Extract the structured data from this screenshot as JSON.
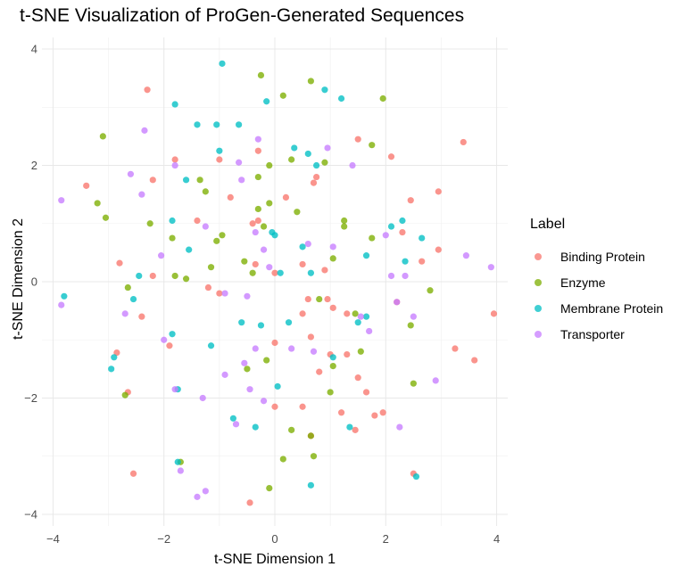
{
  "chart_data": {
    "type": "scatter",
    "title": "t-SNE Visualization of ProGen-Generated Sequences",
    "xlabel": "t-SNE Dimension 1",
    "ylabel": "t-SNE Dimension 2",
    "xlim": [
      -4.2,
      4.2
    ],
    "ylim": [
      -4.2,
      4.2
    ],
    "xticks": [
      -4,
      -2,
      0,
      2,
      4
    ],
    "yticks": [
      -4,
      -2,
      0,
      2,
      4
    ],
    "grid": true,
    "legend": {
      "title": "Label",
      "position": "right"
    },
    "series": [
      {
        "name": "Binding Protein",
        "color": "#F8766D",
        "points": [
          [
            -2.3,
            3.3
          ],
          [
            -2.2,
            1.75
          ],
          [
            -3.4,
            1.65
          ],
          [
            -2.8,
            0.32
          ],
          [
            -2.2,
            0.1
          ],
          [
            -2.4,
            -0.6
          ],
          [
            -1.9,
            -1.1
          ],
          [
            -2.85,
            -1.22
          ],
          [
            -2.65,
            -1.9
          ],
          [
            -2.55,
            -3.3
          ],
          [
            -1.8,
            2.1
          ],
          [
            -1.4,
            1.05
          ],
          [
            -1.2,
            -0.1
          ],
          [
            -1.0,
            -0.2
          ],
          [
            -1.0,
            2.1
          ],
          [
            -0.8,
            1.45
          ],
          [
            -0.3,
            2.25
          ],
          [
            -0.4,
            1.0
          ],
          [
            -0.3,
            1.05
          ],
          [
            0.2,
            1.45
          ],
          [
            0.0,
            0.15
          ],
          [
            -0.35,
            0.3
          ],
          [
            0.5,
            0.3
          ],
          [
            0.5,
            -0.55
          ],
          [
            0.6,
            -0.3
          ],
          [
            0.75,
            1.8
          ],
          [
            0.7,
            1.7
          ],
          [
            0.9,
            0.2
          ],
          [
            0.95,
            -0.3
          ],
          [
            1.05,
            -0.45
          ],
          [
            1.3,
            -0.55
          ],
          [
            0.65,
            -0.95
          ],
          [
            1.0,
            -1.25
          ],
          [
            0.8,
            -1.55
          ],
          [
            0.0,
            -1.05
          ],
          [
            1.3,
            -1.25
          ],
          [
            1.5,
            -1.65
          ],
          [
            1.65,
            -1.9
          ],
          [
            1.2,
            -2.25
          ],
          [
            1.45,
            -2.55
          ],
          [
            1.8,
            -2.3
          ],
          [
            1.95,
            -2.25
          ],
          [
            0.65,
            -2.65
          ],
          [
            0.5,
            -2.15
          ],
          [
            0.0,
            -2.15
          ],
          [
            -0.45,
            -3.8
          ],
          [
            1.5,
            2.45
          ],
          [
            2.1,
            2.15
          ],
          [
            2.3,
            0.85
          ],
          [
            2.2,
            -0.35
          ],
          [
            2.45,
            1.4
          ],
          [
            2.65,
            0.35
          ],
          [
            2.95,
            0.55
          ],
          [
            2.95,
            1.55
          ],
          [
            3.4,
            2.4
          ],
          [
            3.25,
            -1.15
          ],
          [
            3.6,
            -1.35
          ],
          [
            3.95,
            -0.55
          ],
          [
            2.5,
            -3.3
          ]
        ]
      },
      {
        "name": "Enzyme",
        "color": "#7CAE00",
        "points": [
          [
            -3.1,
            2.5
          ],
          [
            -3.2,
            1.35
          ],
          [
            -3.05,
            1.1
          ],
          [
            -2.25,
            1.0
          ],
          [
            -1.85,
            0.75
          ],
          [
            -1.8,
            0.1
          ],
          [
            -1.6,
            0.05
          ],
          [
            -1.15,
            0.25
          ],
          [
            -1.35,
            1.75
          ],
          [
            -1.25,
            1.55
          ],
          [
            -1.05,
            0.7
          ],
          [
            -0.95,
            0.8
          ],
          [
            -0.55,
            0.35
          ],
          [
            -0.4,
            0.15
          ],
          [
            -0.3,
            1.8
          ],
          [
            -0.3,
            1.25
          ],
          [
            -0.1,
            1.35
          ],
          [
            -0.2,
            0.95
          ],
          [
            -0.1,
            2.0
          ],
          [
            -0.25,
            3.55
          ],
          [
            0.15,
            3.2
          ],
          [
            0.3,
            2.1
          ],
          [
            0.4,
            1.2
          ],
          [
            0.65,
            3.45
          ],
          [
            0.9,
            2.05
          ],
          [
            1.25,
            1.05
          ],
          [
            1.25,
            0.95
          ],
          [
            1.05,
            0.4
          ],
          [
            1.75,
            2.35
          ],
          [
            1.95,
            3.15
          ],
          [
            1.75,
            0.75
          ],
          [
            1.45,
            -0.55
          ],
          [
            0.8,
            -0.3
          ],
          [
            2.8,
            -0.15
          ],
          [
            2.45,
            -0.75
          ],
          [
            2.5,
            -1.75
          ],
          [
            1.55,
            -1.2
          ],
          [
            1.05,
            -1.45
          ],
          [
            1.0,
            -1.9
          ],
          [
            -0.15,
            -1.35
          ],
          [
            -0.5,
            -1.5
          ],
          [
            0.3,
            -2.55
          ],
          [
            0.65,
            -2.65
          ],
          [
            0.7,
            -3.0
          ],
          [
            0.15,
            -3.05
          ],
          [
            -0.1,
            -3.55
          ],
          [
            -1.7,
            -3.1
          ],
          [
            -2.7,
            -1.95
          ],
          [
            -2.65,
            -0.1
          ]
        ]
      },
      {
        "name": "Membrane Protein",
        "color": "#00BFC4",
        "points": [
          [
            -0.95,
            3.75
          ],
          [
            -1.8,
            3.05
          ],
          [
            -1.4,
            2.7
          ],
          [
            -1.05,
            2.7
          ],
          [
            -0.65,
            2.7
          ],
          [
            -1.0,
            2.25
          ],
          [
            -0.15,
            3.1
          ],
          [
            0.9,
            3.3
          ],
          [
            1.2,
            3.15
          ],
          [
            0.35,
            2.3
          ],
          [
            0.6,
            2.2
          ],
          [
            0.75,
            2.0
          ],
          [
            -1.6,
            1.75
          ],
          [
            -1.85,
            1.05
          ],
          [
            -1.55,
            0.55
          ],
          [
            -0.05,
            0.85
          ],
          [
            0.0,
            0.8
          ],
          [
            0.5,
            0.6
          ],
          [
            0.1,
            0.15
          ],
          [
            0.65,
            0.15
          ],
          [
            1.65,
            0.45
          ],
          [
            2.1,
            0.95
          ],
          [
            2.3,
            1.05
          ],
          [
            2.35,
            0.35
          ],
          [
            2.65,
            0.75
          ],
          [
            -3.8,
            -0.25
          ],
          [
            -2.45,
            0.1
          ],
          [
            -2.55,
            -0.3
          ],
          [
            -2.9,
            -1.3
          ],
          [
            -2.95,
            -1.5
          ],
          [
            -1.85,
            -0.9
          ],
          [
            -1.75,
            -1.85
          ],
          [
            -1.15,
            -1.1
          ],
          [
            -0.6,
            -0.7
          ],
          [
            -0.25,
            -0.75
          ],
          [
            0.25,
            -0.7
          ],
          [
            0.05,
            -1.8
          ],
          [
            1.05,
            -1.3
          ],
          [
            1.5,
            -0.7
          ],
          [
            1.65,
            -0.6
          ],
          [
            1.35,
            -2.5
          ],
          [
            -0.75,
            -2.35
          ],
          [
            -0.35,
            -2.5
          ],
          [
            -1.75,
            -3.1
          ],
          [
            0.65,
            -3.5
          ],
          [
            2.55,
            -3.35
          ]
        ]
      },
      {
        "name": "Transporter",
        "color": "#C77CFF",
        "points": [
          [
            -3.85,
            1.4
          ],
          [
            -2.6,
            1.85
          ],
          [
            -2.4,
            1.5
          ],
          [
            -2.35,
            2.6
          ],
          [
            -1.8,
            2.0
          ],
          [
            -1.25,
            0.95
          ],
          [
            -0.65,
            2.05
          ],
          [
            -0.3,
            2.45
          ],
          [
            -0.6,
            1.75
          ],
          [
            -0.35,
            0.85
          ],
          [
            -0.2,
            0.55
          ],
          [
            -0.1,
            0.25
          ],
          [
            -0.5,
            -0.25
          ],
          [
            -0.9,
            -0.2
          ],
          [
            -2.05,
            0.45
          ],
          [
            -3.85,
            -0.4
          ],
          [
            -2.7,
            -0.55
          ],
          [
            -2.0,
            -1.0
          ],
          [
            -1.8,
            -1.85
          ],
          [
            -1.3,
            -2.0
          ],
          [
            -1.7,
            -3.25
          ],
          [
            -1.25,
            -3.6
          ],
          [
            -1.4,
            -3.7
          ],
          [
            -0.7,
            -2.45
          ],
          [
            -0.9,
            -1.6
          ],
          [
            -0.55,
            -1.4
          ],
          [
            -0.35,
            -1.15
          ],
          [
            -0.45,
            -1.85
          ],
          [
            -0.2,
            -2.05
          ],
          [
            0.3,
            -1.15
          ],
          [
            0.7,
            -1.2
          ],
          [
            0.6,
            0.65
          ],
          [
            1.05,
            0.6
          ],
          [
            0.95,
            2.3
          ],
          [
            1.4,
            2.0
          ],
          [
            1.55,
            -0.6
          ],
          [
            1.7,
            -0.85
          ],
          [
            2.0,
            0.8
          ],
          [
            2.1,
            0.1
          ],
          [
            2.2,
            -0.35
          ],
          [
            2.35,
            0.1
          ],
          [
            2.5,
            -0.6
          ],
          [
            2.9,
            -1.7
          ],
          [
            3.45,
            0.45
          ],
          [
            3.9,
            0.25
          ],
          [
            2.25,
            -2.5
          ]
        ]
      }
    ]
  }
}
